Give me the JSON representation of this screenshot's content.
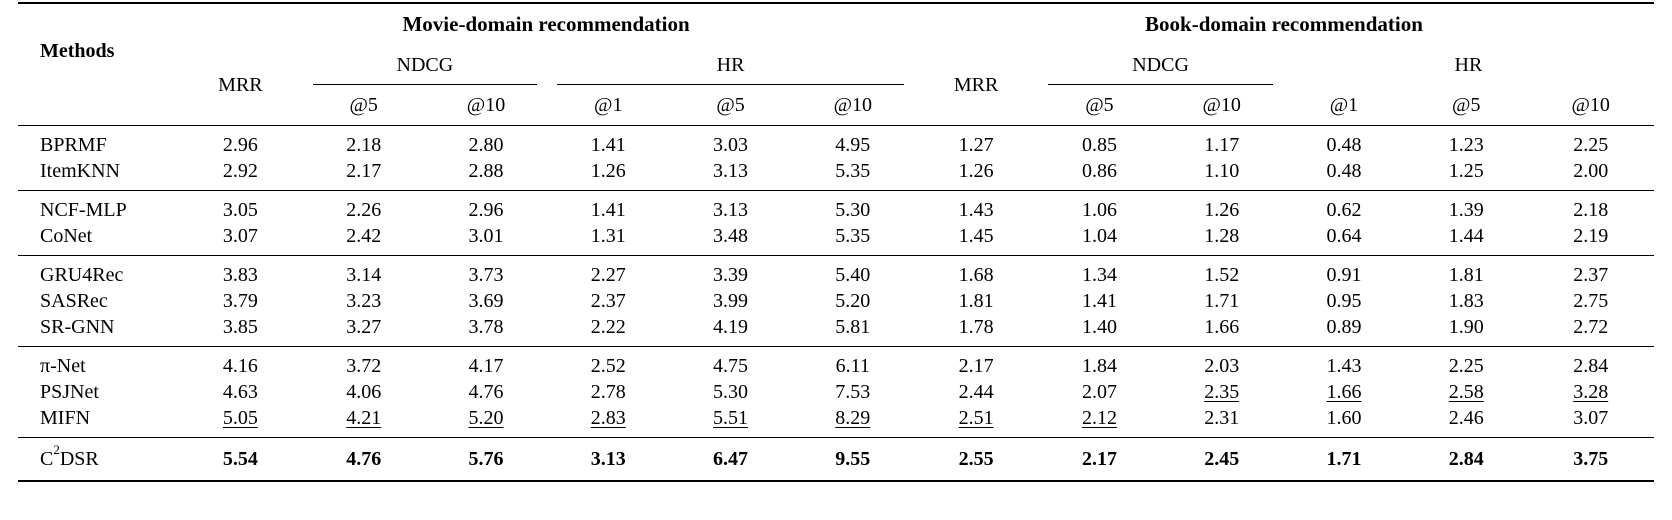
{
  "header": {
    "methods_label": "Methods",
    "movie_domain": "Movie-domain recommendation",
    "book_domain": "Book-domain recommendation",
    "mrr": "MRR",
    "ndcg": "NDCG",
    "hr": "HR",
    "k5": "@5",
    "k10": "@10",
    "k1": "@1"
  },
  "groups": [
    [
      {
        "name": "BPRMF",
        "movie": [
          "2.96",
          "2.18",
          "2.80",
          "1.41",
          "3.03",
          "4.95"
        ],
        "book": [
          "1.27",
          "0.85",
          "1.17",
          "0.48",
          "1.23",
          "2.25"
        ]
      },
      {
        "name": "ItemKNN",
        "movie": [
          "2.92",
          "2.17",
          "2.88",
          "1.26",
          "3.13",
          "5.35"
        ],
        "book": [
          "1.26",
          "0.86",
          "1.10",
          "0.48",
          "1.25",
          "2.00"
        ]
      }
    ],
    [
      {
        "name": "NCF-MLP",
        "movie": [
          "3.05",
          "2.26",
          "2.96",
          "1.41",
          "3.13",
          "5.30"
        ],
        "book": [
          "1.43",
          "1.06",
          "1.26",
          "0.62",
          "1.39",
          "2.18"
        ]
      },
      {
        "name": "CoNet",
        "movie": [
          "3.07",
          "2.42",
          "3.01",
          "1.31",
          "3.48",
          "5.35"
        ],
        "book": [
          "1.45",
          "1.04",
          "1.28",
          "0.64",
          "1.44",
          "2.19"
        ]
      }
    ],
    [
      {
        "name": "GRU4Rec",
        "movie": [
          "3.83",
          "3.14",
          "3.73",
          "2.27",
          "3.39",
          "5.40"
        ],
        "book": [
          "1.68",
          "1.34",
          "1.52",
          "0.91",
          "1.81",
          "2.37"
        ]
      },
      {
        "name": "SASRec",
        "movie": [
          "3.79",
          "3.23",
          "3.69",
          "2.37",
          "3.99",
          "5.20"
        ],
        "book": [
          "1.81",
          "1.41",
          "1.71",
          "0.95",
          "1.83",
          "2.75"
        ]
      },
      {
        "name": "SR-GNN",
        "movie": [
          "3.85",
          "3.27",
          "3.78",
          "2.22",
          "4.19",
          "5.81"
        ],
        "book": [
          "1.78",
          "1.40",
          "1.66",
          "0.89",
          "1.90",
          "2.72"
        ]
      }
    ],
    [
      {
        "name": "π-Net",
        "movie": [
          "4.16",
          "3.72",
          "4.17",
          "2.52",
          "4.75",
          "6.11"
        ],
        "book": [
          "2.17",
          "1.84",
          "2.03",
          "1.43",
          "2.25",
          "2.84"
        ]
      },
      {
        "name": "PSJNet",
        "movie": [
          "4.63",
          "4.06",
          "4.76",
          "2.78",
          "5.30",
          "7.53"
        ],
        "book": [
          "2.44",
          "2.07",
          "2.35",
          "1.66",
          "2.58",
          "3.28"
        ],
        "underline_book": [
          2,
          3,
          4,
          5
        ]
      },
      {
        "name": "MIFN",
        "movie": [
          "5.05",
          "4.21",
          "5.20",
          "2.83",
          "5.51",
          "8.29"
        ],
        "book": [
          "2.51",
          "2.12",
          "2.31",
          "1.60",
          "2.46",
          "3.07"
        ],
        "underline_movie": [
          0,
          1,
          2,
          3,
          4,
          5
        ],
        "underline_book": [
          0,
          1
        ]
      }
    ]
  ],
  "best": {
    "name_base": "C",
    "name_sup": "2",
    "name_rest": "DSR",
    "movie": [
      "5.54",
      "4.76",
      "5.76",
      "3.13",
      "6.47",
      "9.55"
    ],
    "book": [
      "2.55",
      "2.17",
      "2.45",
      "1.71",
      "2.84",
      "3.75"
    ]
  }
}
